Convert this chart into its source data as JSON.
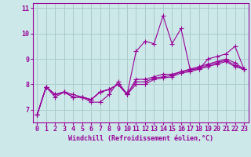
{
  "xlabel": "Windchill (Refroidissement éolien,°C)",
  "background_color": "#cce8e8",
  "line_color": "#990099",
  "grid_color": "#aacccc",
  "x_data": [
    0,
    1,
    2,
    3,
    4,
    5,
    6,
    7,
    8,
    9,
    10,
    11,
    12,
    13,
    14,
    15,
    16,
    17,
    18,
    19,
    20,
    21,
    22,
    23
  ],
  "series": [
    [
      6.8,
      7.9,
      7.5,
      7.7,
      7.5,
      7.5,
      7.3,
      7.3,
      7.6,
      8.1,
      7.6,
      9.3,
      9.7,
      9.6,
      10.7,
      9.6,
      10.2,
      8.6,
      8.6,
      9.0,
      9.1,
      9.2,
      9.5,
      8.6
    ],
    [
      6.8,
      7.9,
      7.6,
      7.7,
      7.6,
      7.5,
      7.4,
      7.7,
      7.8,
      8.0,
      7.6,
      8.2,
      8.2,
      8.3,
      8.4,
      8.4,
      8.5,
      8.6,
      8.7,
      8.8,
      8.9,
      9.0,
      8.85,
      8.6
    ],
    [
      6.8,
      7.9,
      7.6,
      7.7,
      7.5,
      7.5,
      7.4,
      7.7,
      7.8,
      8.0,
      7.65,
      8.1,
      8.1,
      8.25,
      8.3,
      8.35,
      8.5,
      8.55,
      8.65,
      8.75,
      8.85,
      8.95,
      8.75,
      8.6
    ],
    [
      6.8,
      7.9,
      7.6,
      7.7,
      7.5,
      7.5,
      7.4,
      7.7,
      7.8,
      8.0,
      7.6,
      8.0,
      8.0,
      8.2,
      8.25,
      8.3,
      8.45,
      8.5,
      8.6,
      8.7,
      8.8,
      8.9,
      8.7,
      8.6
    ]
  ],
  "xlim": [
    -0.5,
    23.5
  ],
  "ylim": [
    6.5,
    11.2
  ],
  "yticks": [
    7,
    8,
    9,
    10,
    11
  ],
  "xticks": [
    0,
    1,
    2,
    3,
    4,
    5,
    6,
    7,
    8,
    9,
    10,
    11,
    12,
    13,
    14,
    15,
    16,
    17,
    18,
    19,
    20,
    21,
    22,
    23
  ],
  "marker": "+",
  "markersize": 4,
  "linewidth": 0.8,
  "tick_color": "#990099",
  "axis_color": "#990099",
  "label_fontsize": 6,
  "tick_fontsize": 6
}
